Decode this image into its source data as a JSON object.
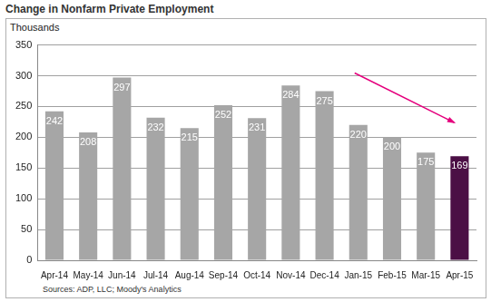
{
  "chart_data": {
    "type": "bar",
    "title": "Change in Nonfarm Private Employment",
    "y_label": "Thousands",
    "source": "Sources: ADP, LLC; Moody's Analytics",
    "categories": [
      "Apr-14",
      "May-14",
      "Jun-14",
      "Jul-14",
      "Aug-14",
      "Sep-14",
      "Oct-14",
      "Nov-14",
      "Dec-14",
      "Jan-15",
      "Feb-15",
      "Mar-15",
      "Apr-15"
    ],
    "values": [
      242,
      208,
      297,
      232,
      215,
      252,
      231,
      284,
      275,
      220,
      200,
      175,
      169
    ],
    "colors": [
      "#a6a6a6",
      "#a6a6a6",
      "#a6a6a6",
      "#a6a6a6",
      "#a6a6a6",
      "#a6a6a6",
      "#a6a6a6",
      "#a6a6a6",
      "#a6a6a6",
      "#a6a6a6",
      "#a6a6a6",
      "#a6a6a6",
      "#4b0f45"
    ],
    "ylim": [
      0,
      350
    ],
    "yticks": [
      0,
      50,
      100,
      150,
      200,
      250,
      300,
      350
    ],
    "grid": true,
    "data_labels": true
  }
}
